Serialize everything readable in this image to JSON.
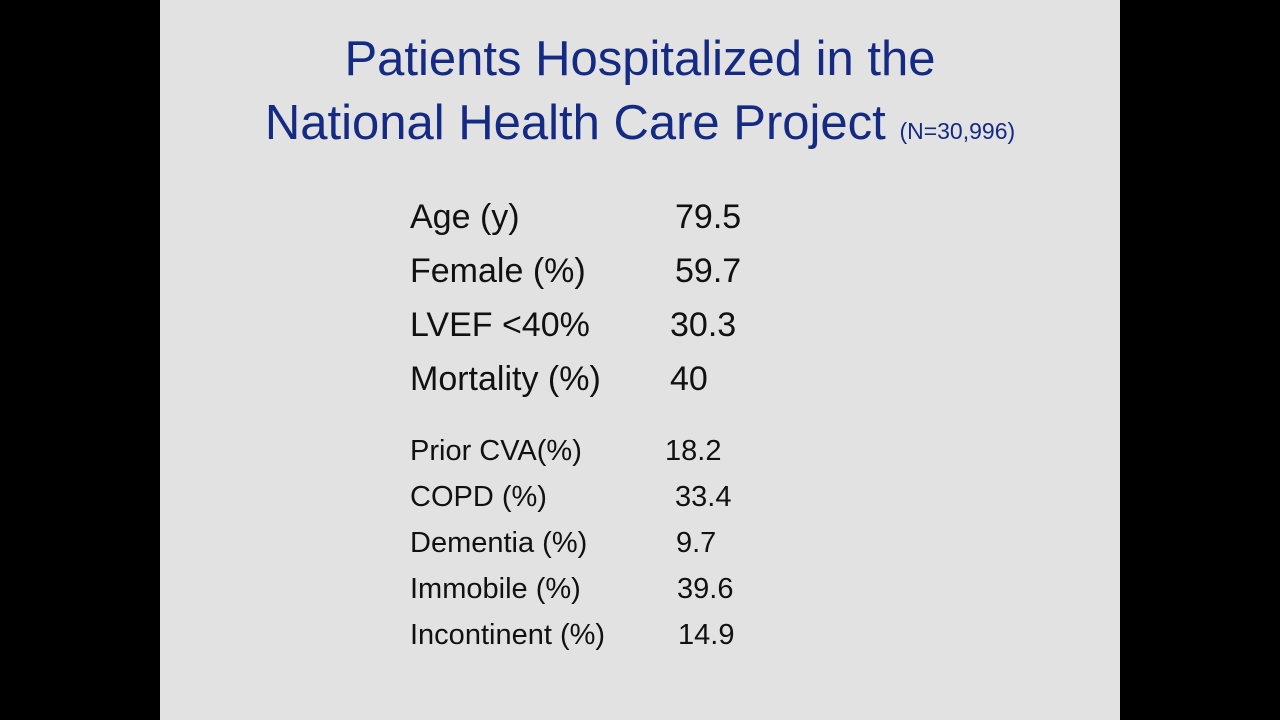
{
  "title": {
    "line1": "Patients Hospitalized in the",
    "line2": "National Health Care Project",
    "note": "(N=30,996)"
  },
  "stats_primary": [
    {
      "label": "Age (y)",
      "value": "79.5"
    },
    {
      "label": "Female (%)",
      "value": "59.7"
    },
    {
      "label": "LVEF <40%",
      "value": "30.3"
    },
    {
      "label": "Mortality (%)",
      "value": "40"
    }
  ],
  "stats_secondary": [
    {
      "label": "Prior CVA(%)",
      "value": "18.2"
    },
    {
      "label": "COPD (%)",
      "value": "33.4"
    },
    {
      "label": "Dementia (%)",
      "value": "9.7"
    },
    {
      "label": "Immobile (%)",
      "value": "39.6"
    },
    {
      "label": "Incontinent (%)",
      "value": "14.9"
    }
  ],
  "colors": {
    "title": "#152a82",
    "text": "#111111",
    "slide_background": "#e2e2e2",
    "frame": "#000000"
  }
}
